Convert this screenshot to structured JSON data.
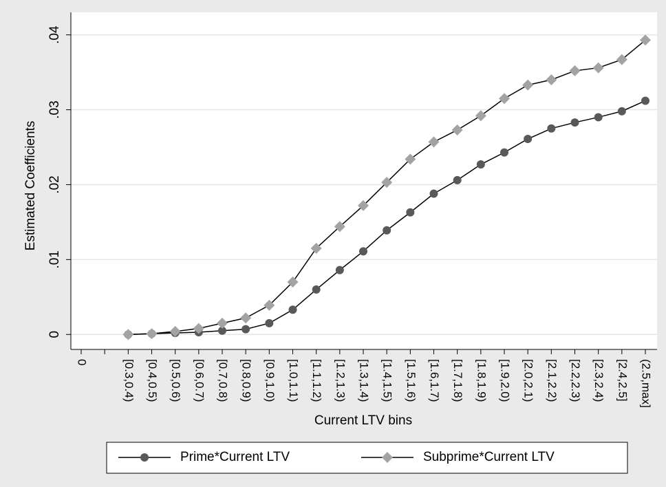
{
  "chart_data": {
    "type": "line",
    "x_label": "Current LTV bins",
    "y_label": "Estimated Coefficients",
    "categories": [
      "0",
      null,
      "[0.3,0.4)",
      "[0.4,0.5)",
      "[0.5,0.6)",
      "[0.6,0.7)",
      "[0.7,0.8)",
      "[0.8,0.9)",
      "[0.9,1.0)",
      "[1.0,1.1)",
      "[1.1,1.2)",
      "[1.2,1.3)",
      "[1.3,1.4)",
      "[1.4,1.5)",
      "[1.5,1.6)",
      "[1.6,1.7)",
      "[1.7,1.8)",
      "[1.8,1.9)",
      "[1.9,2.0)",
      "[2.0,2.1)",
      "[2.1,2.2)",
      "[2.2,2.3)",
      "[2.3,2.4)",
      "[2.4,2.5]",
      "(2.5,max]"
    ],
    "series": [
      {
        "name": "Prime*Current LTV",
        "color": "#595959",
        "marker": "circle",
        "values": [
          null,
          null,
          0,
          0.0001,
          0.0002,
          0.0003,
          0.0005,
          0.0007,
          0.0015,
          0.0033,
          0.006,
          0.0086,
          0.0111,
          0.0139,
          0.0163,
          0.0188,
          0.0206,
          0.0227,
          0.0243,
          0.0261,
          0.0275,
          0.0283,
          0.029,
          0.0298,
          0.0312
        ]
      },
      {
        "name": "Subprime*Current LTV",
        "color": "#a3a3a3",
        "marker": "diamond",
        "values": [
          null,
          null,
          0,
          0.0001,
          0.0004,
          0.0008,
          0.0015,
          0.0022,
          0.0039,
          0.007,
          0.0115,
          0.0144,
          0.0172,
          0.0203,
          0.0234,
          0.0257,
          0.0273,
          0.0292,
          0.0315,
          0.0333,
          0.034,
          0.0352,
          0.0356,
          0.0367,
          0.0393
        ]
      }
    ],
    "ylim": [
      -0.002,
      0.043
    ],
    "yticks": [
      0,
      {
        "value": 0.01,
        "label": ".01"
      },
      {
        "value": 0.02,
        "label": ".02"
      },
      {
        "value": 0.03,
        "label": ".03"
      },
      {
        "value": 0.04,
        "label": ".04"
      }
    ],
    "grid": true,
    "legend": "bottom"
  }
}
